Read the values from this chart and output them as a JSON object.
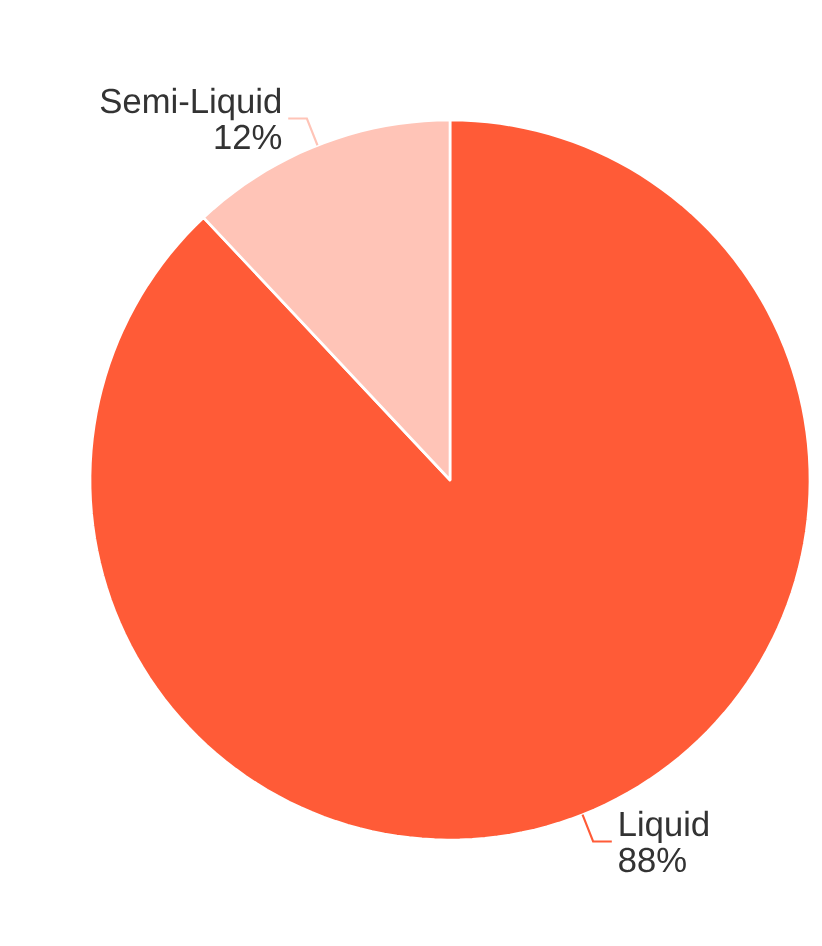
{
  "chart_data": {
    "type": "pie",
    "categories": [
      "Liquid",
      "Semi-Liquid"
    ],
    "values": [
      88,
      12
    ],
    "value_labels": [
      "88%",
      "12%"
    ],
    "colors": [
      "#ff5b37",
      "#ffc4b7"
    ]
  }
}
